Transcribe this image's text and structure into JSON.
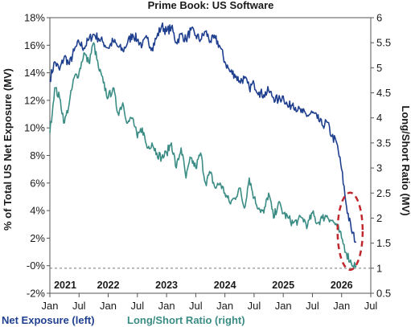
{
  "chart_data": {
    "type": "line",
    "title": "Prime Book: US Software",
    "ylabel_left": "% of Total US Net Exposure (MV)",
    "ylabel_right": "Long/Short Ratio (MV)",
    "yleft": {
      "min": -2,
      "max": 18,
      "ticks": [
        18,
        16,
        14,
        12,
        10,
        8,
        6,
        4,
        2,
        0,
        -2
      ],
      "tick_labels": [
        "18%",
        "16%",
        "14%",
        "12%",
        "10%",
        "8%",
        "6%",
        "4%",
        "2%",
        "-0%",
        "-2%"
      ]
    },
    "yright": {
      "min": 0.5,
      "max": 6,
      "ticks": [
        6,
        5.5,
        5,
        4.5,
        4,
        3.5,
        3,
        2.5,
        2,
        1.5,
        1,
        0.5
      ],
      "tick_labels": [
        "6",
        "5.5",
        "5",
        "4.5",
        "4",
        "3.5",
        "3",
        "2.5",
        "2",
        "1.5",
        "1",
        "0.5"
      ]
    },
    "x_range": [
      "2021-01",
      "2026-07"
    ],
    "x_ticks": [
      "Jan",
      "Jul",
      "Jan",
      "Jul",
      "Jan",
      "Jul",
      "Jan",
      "Jul",
      "Jan",
      "Jul",
      "Jan",
      "Jul"
    ],
    "year_labels": [
      "2021",
      "2022",
      "2023",
      "2024",
      "2025",
      "2026"
    ],
    "reference_line": {
      "axis": "right",
      "value": 1,
      "style": "dashed"
    },
    "highlight": {
      "shape": "ellipse",
      "style": "dashed",
      "color": "#c0282d",
      "around": "2026-02 to 2026-04"
    },
    "grid": false,
    "legend_position": "bottom",
    "series": [
      {
        "name": "Net Exposure (left)",
        "axis": "left",
        "color": "#1f3f8f",
        "x": [
          "2021-01",
          "2021-02",
          "2021-03",
          "2021-04",
          "2021-05",
          "2021-06",
          "2021-07",
          "2021-08",
          "2021-09",
          "2021-10",
          "2021-11",
          "2021-12",
          "2022-01",
          "2022-02",
          "2022-03",
          "2022-04",
          "2022-05",
          "2022-06",
          "2022-07",
          "2022-08",
          "2022-09",
          "2022-10",
          "2022-11",
          "2022-12",
          "2023-01",
          "2023-02",
          "2023-03",
          "2023-04",
          "2023-05",
          "2023-06",
          "2023-07",
          "2023-08",
          "2023-09",
          "2023-10",
          "2023-11",
          "2023-12",
          "2024-01",
          "2024-02",
          "2024-03",
          "2024-04",
          "2024-05",
          "2024-06",
          "2024-07",
          "2024-08",
          "2024-09",
          "2024-10",
          "2024-11",
          "2024-12",
          "2025-01",
          "2025-02",
          "2025-03",
          "2025-04",
          "2025-05",
          "2025-06",
          "2025-07",
          "2025-08",
          "2025-09",
          "2025-10",
          "2025-11",
          "2025-12",
          "2026-01",
          "2026-02",
          "2026-03",
          "2026-04"
        ],
        "values": [
          13.5,
          14.8,
          14.2,
          15.2,
          14.6,
          15.6,
          16.2,
          15.8,
          16.4,
          16.8,
          16.5,
          16.2,
          15.8,
          16.3,
          15.9,
          15.6,
          16.2,
          16.8,
          16.4,
          16.0,
          16.5,
          15.8,
          16.6,
          17.4,
          17.0,
          17.3,
          16.2,
          16.8,
          16.4,
          17.1,
          16.7,
          16.4,
          17.0,
          16.3,
          16.5,
          15.9,
          14.8,
          14.1,
          13.9,
          13.4,
          13.6,
          12.9,
          13.2,
          12.6,
          12.4,
          12.7,
          12.2,
          12.0,
          12.3,
          11.5,
          11.8,
          11.3,
          11.1,
          10.9,
          11.1,
          10.7,
          10.2,
          10.4,
          9.4,
          8.9,
          7.0,
          4.3,
          2.6,
          1.7
        ]
      },
      {
        "name": "Long/Short Ratio (right)",
        "axis": "right",
        "color": "#3a8c84",
        "x": [
          "2021-01",
          "2021-02",
          "2021-03",
          "2021-04",
          "2021-05",
          "2021-06",
          "2021-07",
          "2021-08",
          "2021-09",
          "2021-10",
          "2021-11",
          "2021-12",
          "2022-01",
          "2022-02",
          "2022-03",
          "2022-04",
          "2022-05",
          "2022-06",
          "2022-07",
          "2022-08",
          "2022-09",
          "2022-10",
          "2022-11",
          "2022-12",
          "2023-01",
          "2023-02",
          "2023-03",
          "2023-04",
          "2023-05",
          "2023-06",
          "2023-07",
          "2023-08",
          "2023-09",
          "2023-10",
          "2023-11",
          "2023-12",
          "2024-01",
          "2024-02",
          "2024-03",
          "2024-04",
          "2024-05",
          "2024-06",
          "2024-07",
          "2024-08",
          "2024-09",
          "2024-10",
          "2024-11",
          "2024-12",
          "2025-01",
          "2025-02",
          "2025-03",
          "2025-04",
          "2025-05",
          "2025-06",
          "2025-07",
          "2025-08",
          "2025-09",
          "2025-10",
          "2025-11",
          "2025-12",
          "2026-01",
          "2026-02",
          "2026-03",
          "2026-04"
        ],
        "values": [
          3.7,
          4.6,
          4.4,
          3.9,
          4.3,
          4.8,
          4.9,
          5.3,
          5.1,
          5.5,
          5.0,
          4.7,
          4.4,
          4.6,
          4.1,
          4.3,
          3.9,
          4.0,
          3.6,
          3.8,
          3.4,
          3.5,
          3.3,
          3.2,
          3.3,
          3.5,
          3.0,
          3.4,
          2.8,
          3.2,
          3.0,
          3.3,
          2.7,
          2.9,
          2.6,
          2.7,
          2.5,
          2.3,
          2.4,
          2.6,
          2.2,
          2.8,
          2.4,
          2.2,
          2.1,
          2.5,
          2.0,
          2.3,
          2.1,
          2.0,
          1.9,
          1.95,
          2.0,
          1.85,
          2.1,
          1.9,
          2.0,
          2.05,
          1.95,
          1.85,
          1.6,
          1.3,
          1.1,
          1.05
        ]
      }
    ]
  }
}
